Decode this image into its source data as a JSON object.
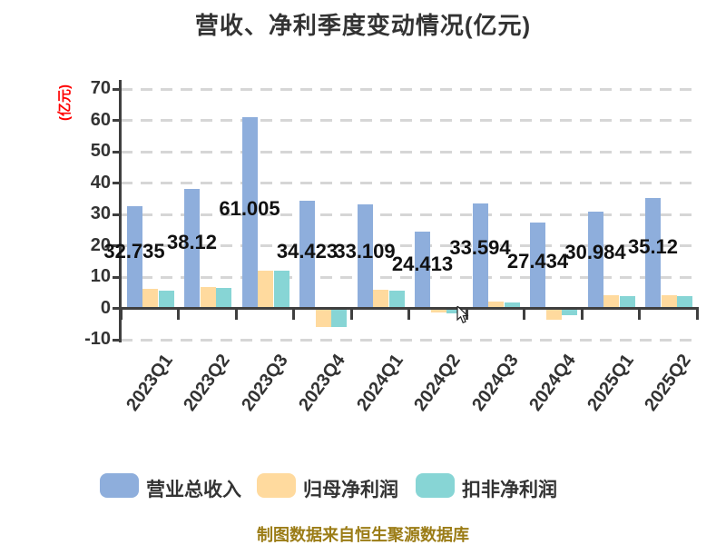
{
  "title": "营收、净利季度变动情况(亿元)",
  "y_axis_unit": "(亿元)",
  "caption": "制图数据来自恒生聚源数据库",
  "chart_data": {
    "type": "bar",
    "title": "营收、净利季度变动情况(亿元)",
    "ylabel": "(亿元)",
    "ylim": [
      -10,
      70
    ],
    "yticks": [
      70,
      60,
      50,
      40,
      30,
      20,
      10,
      0,
      -10
    ],
    "grid": "horizontal-dashed",
    "legend_position": "bottom",
    "categories": [
      "2023Q1",
      "2023Q2",
      "2023Q3",
      "2023Q4",
      "2024Q1",
      "2024Q2",
      "2024Q3",
      "2024Q4",
      "2025Q1",
      "2025Q2"
    ],
    "series": [
      {
        "key": "total-revenue",
        "name": "营业总收入",
        "color": "#8eaedc",
        "values": [
          32.735,
          38.12,
          61.005,
          34.423,
          33.109,
          24.413,
          33.594,
          27.434,
          30.984,
          35.12
        ],
        "data_labels": [
          "32.735",
          "38.12",
          "61.005",
          "34.423",
          "33.109",
          "24.413",
          "33.594",
          "27.434",
          "30.984",
          "35.12"
        ]
      },
      {
        "key": "net-profit-attributable",
        "name": "归母净利润",
        "color": "#ffda9e",
        "values": [
          6.1,
          6.9,
          11.9,
          -5.9,
          6.0,
          -1.3,
          2.3,
          -3.6,
          4.2,
          4.1
        ]
      },
      {
        "key": "non-gaap-net-profit",
        "name": "扣非净利润",
        "color": "#87d5d5",
        "values": [
          5.7,
          6.5,
          12.1,
          -6.0,
          5.7,
          -1.5,
          1.9,
          -2.1,
          4.0,
          4.0
        ]
      }
    ]
  },
  "legend": {
    "items": [
      {
        "label": "营业总收入",
        "color": "#8eaedc"
      },
      {
        "label": "归母净利润",
        "color": "#ffda9e"
      },
      {
        "label": "扣非净利润",
        "color": "#87d5d5"
      }
    ]
  },
  "colors": {
    "background": "#ffffff",
    "title": "#333333",
    "axis": "#3f3f3f",
    "grid": "#d6d6d6",
    "tick_label": "#333333",
    "unit_label": "#ff0000",
    "data_label": "#111111",
    "caption": "#9b7c16"
  }
}
